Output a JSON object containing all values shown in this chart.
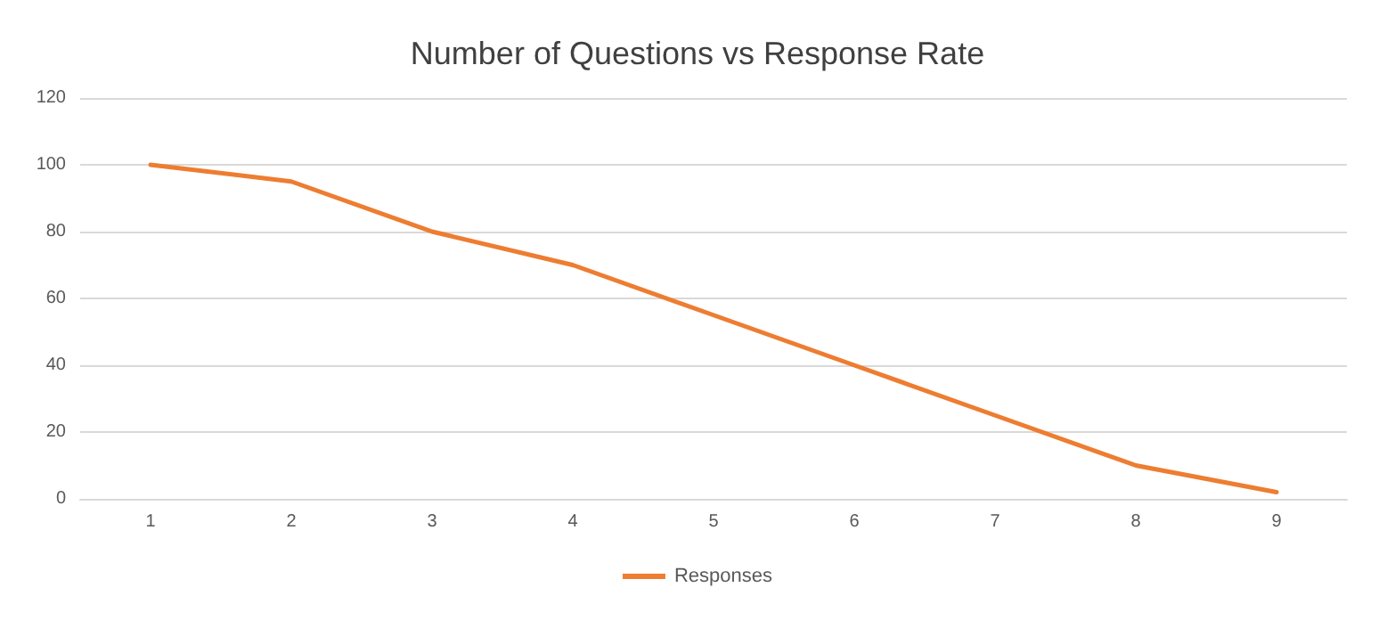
{
  "chart_data": {
    "type": "line",
    "title": "Number of Questions vs Response Rate",
    "categories": [
      "1",
      "2",
      "3",
      "4",
      "5",
      "6",
      "7",
      "8",
      "9"
    ],
    "series": [
      {
        "name": "Responses",
        "color": "#ed7d31",
        "values": [
          100,
          95,
          80,
          70,
          55,
          40,
          25,
          10,
          2
        ]
      }
    ],
    "ylim": [
      0,
      120
    ],
    "yticks": [
      0,
      20,
      40,
      60,
      80,
      100,
      120
    ],
    "grid": "y",
    "legend": "bottom",
    "marker": "none",
    "line_style": "solid"
  }
}
